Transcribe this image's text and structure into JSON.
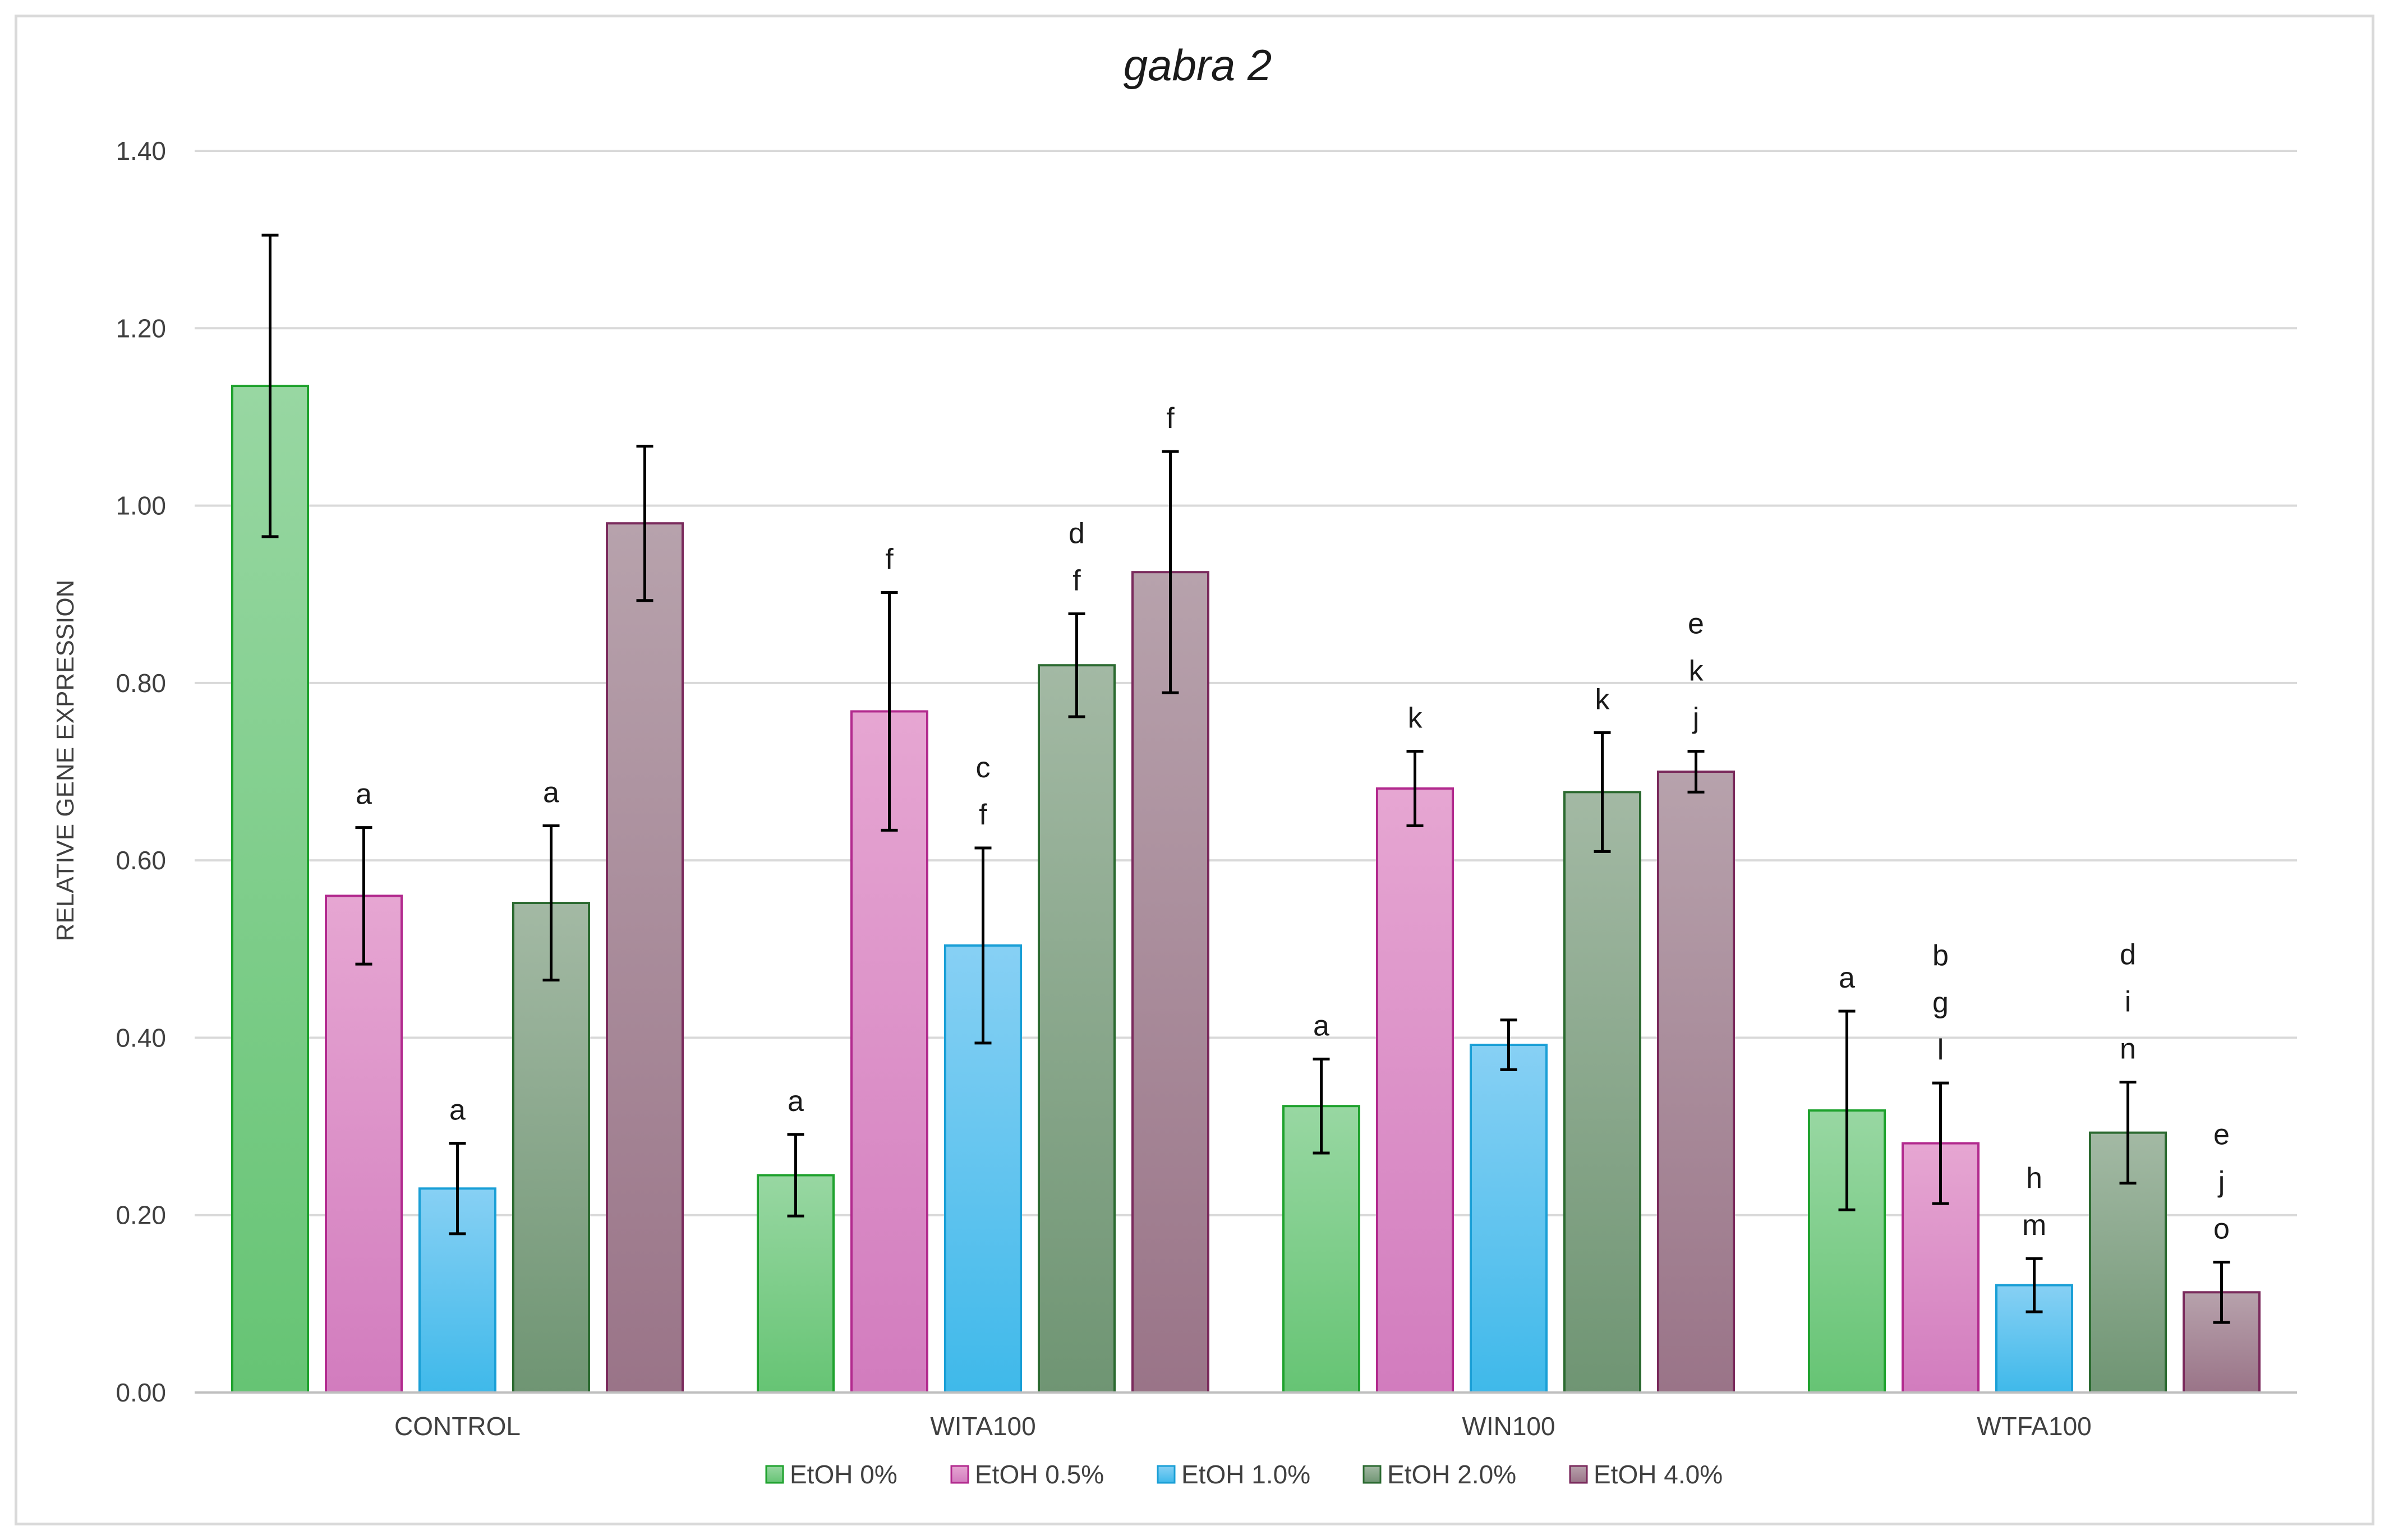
{
  "chart_data": {
    "type": "bar",
    "title": "gabra 2",
    "xlabel": "",
    "ylabel": "RELATIVE GENE EXPRESSION",
    "ylim": [
      0,
      1.4
    ],
    "yticks": [
      "0.00",
      "0.20",
      "0.40",
      "0.60",
      "0.80",
      "1.00",
      "1.20",
      "1.40"
    ],
    "grid": true,
    "legend_position": "bottom",
    "categories": [
      "CONTROL",
      "WITA100",
      "WIN100",
      "WTFA100"
    ],
    "series": [
      {
        "name": "EtOH 0%",
        "fill_top": "#98d7a2",
        "fill_bottom": "#66c474",
        "stroke": "#1fa22e",
        "values": [
          1.135,
          0.245,
          0.323,
          0.318
        ],
        "errors": [
          0.17,
          0.046,
          0.053,
          0.112
        ],
        "labels": [
          [],
          [
            "a"
          ],
          [
            "a"
          ],
          [
            "a"
          ]
        ]
      },
      {
        "name": "EtOH 0.5%",
        "fill_top": "#e6a6d2",
        "fill_bottom": "#d27cbe",
        "stroke": "#b22a8e",
        "values": [
          0.56,
          0.768,
          0.681,
          0.281
        ],
        "errors": [
          0.077,
          0.134,
          0.042,
          0.068
        ],
        "labels": [
          [
            "a"
          ],
          [
            "f"
          ],
          [
            "k"
          ],
          [
            "b",
            "g",
            "l"
          ]
        ]
      },
      {
        "name": "EtOH 1.0%",
        "fill_top": "#87d0f4",
        "fill_bottom": "#3fb9ea",
        "stroke": "#1a9fd6",
        "values": [
          0.23,
          0.504,
          0.392,
          0.121
        ],
        "errors": [
          0.051,
          0.11,
          0.028,
          0.03
        ],
        "labels": [
          [
            "a"
          ],
          [
            "c",
            "f"
          ],
          [],
          [
            "h",
            "m"
          ]
        ]
      },
      {
        "name": "EtOH 2.0%",
        "fill_top": "#a3b9a4",
        "fill_bottom": "#6f9573",
        "stroke": "#2b6a30",
        "values": [
          0.552,
          0.82,
          0.677,
          0.293
        ],
        "errors": [
          0.087,
          0.058,
          0.067,
          0.057
        ],
        "labels": [
          [
            "a"
          ],
          [
            "d",
            "f"
          ],
          [
            "k"
          ],
          [
            "d",
            "i",
            "n"
          ]
        ]
      },
      {
        "name": "EtOH 4.0%",
        "fill_top": "#b7a2ac",
        "fill_bottom": "#9a7488",
        "stroke": "#7a2a5c",
        "values": [
          0.98,
          0.925,
          0.7,
          0.113
        ],
        "errors": [
          0.087,
          0.136,
          0.023,
          0.034
        ],
        "labels": [
          [],
          [
            "f"
          ],
          [
            "e",
            "k",
            "j"
          ],
          [
            "e",
            "j",
            "o"
          ]
        ]
      }
    ]
  }
}
